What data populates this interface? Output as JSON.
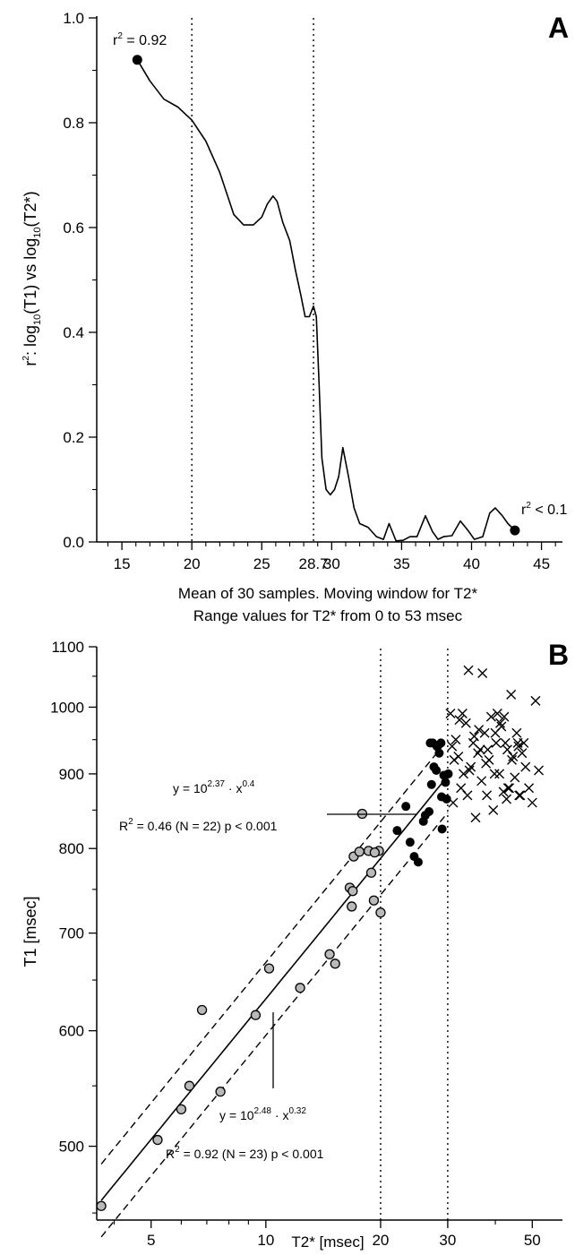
{
  "chart_data": [
    {
      "type": "line",
      "panel_label": "A",
      "ylabel_parts": {
        "r": "r",
        "r_sup": "2",
        "colon": ":  log",
        "sub1": "10",
        "mid": "(T1)  vs  log",
        "sub2": "10",
        "end": "(T2*)"
      },
      "xlabel_line1": "Mean of 30 samples. Moving window for T2*",
      "xlabel_line2": "Range values for T2* from 0 to 53 msec",
      "xlim": [
        13.2,
        46.5
      ],
      "ylim": [
        0,
        1.0
      ],
      "x_ticks": [
        15,
        20,
        25,
        30,
        35,
        40,
        45
      ],
      "x_tick_labels": [
        "15",
        "20",
        "25",
        "30",
        "35",
        "40",
        "45"
      ],
      "extra_x_tick_value": 28.7,
      "extra_x_tick_label": "28.7",
      "y_ticks": [
        0,
        0.2,
        0.4,
        0.6,
        0.8,
        1.0
      ],
      "y_tick_labels": [
        "0.0",
        "0.2",
        "0.4",
        "0.6",
        "0.8",
        "1.0"
      ],
      "vlines": [
        20,
        28.7
      ],
      "series": [
        {
          "x": [
            16.1,
            17.0,
            18.0,
            19.0,
            20.0,
            21.0,
            22.0,
            23.0,
            23.7,
            24.4,
            25.0,
            25.4,
            25.8,
            26.1,
            26.5,
            27.0,
            27.4,
            27.8,
            28.1,
            28.4,
            28.7,
            28.9,
            29.1,
            29.3,
            29.6,
            29.9,
            30.2,
            30.5,
            30.8,
            31.2,
            31.6,
            32.0,
            32.6,
            33.2,
            33.7,
            34.1,
            34.6,
            35.1,
            35.6,
            36.1,
            36.7,
            37.2,
            37.6,
            38.0,
            38.6,
            39.2,
            39.8,
            40.2,
            40.8,
            41.3,
            41.7,
            42.2,
            42.6,
            43.1
          ],
          "y": [
            0.92,
            0.88,
            0.845,
            0.83,
            0.805,
            0.765,
            0.705,
            0.625,
            0.605,
            0.605,
            0.62,
            0.645,
            0.66,
            0.65,
            0.61,
            0.575,
            0.52,
            0.47,
            0.43,
            0.43,
            0.45,
            0.43,
            0.3,
            0.16,
            0.1,
            0.09,
            0.1,
            0.125,
            0.18,
            0.125,
            0.065,
            0.035,
            0.028,
            0.01,
            0.005,
            0.035,
            0.002,
            0.003,
            0.01,
            0.01,
            0.05,
            0.02,
            0.005,
            0.01,
            0.012,
            0.04,
            0.02,
            0.005,
            0.01,
            0.055,
            0.065,
            0.05,
            0.035,
            0.022
          ]
        }
      ],
      "endpoints": [
        {
          "x": 16.1,
          "y": 0.92,
          "label_r": "r",
          "label_sup": "2",
          "label_rest": " = 0.92"
        },
        {
          "x": 43.1,
          "y": 0.022,
          "label_r": "r",
          "label_sup": "2",
          "label_rest": " < 0.1"
        }
      ]
    },
    {
      "type": "scatter",
      "panel_label": "B",
      "xlabel": "T2*  [msec]",
      "ylabel": "T1  [msec]",
      "x_scale": "log",
      "y_scale": "log",
      "xlim": [
        3.6,
        60
      ],
      "ylim": [
        445,
        1100
      ],
      "x_ticks": [
        5,
        10,
        20,
        30,
        50
      ],
      "x_tick_labels": [
        "5",
        "10",
        "20",
        "30",
        "50"
      ],
      "y_ticks": [
        500,
        600,
        700,
        800,
        900,
        1000,
        1100
      ],
      "y_tick_labels": [
        "500",
        "600",
        "700",
        "800",
        "900",
        "1000",
        "1100"
      ],
      "vlines": [
        20,
        30
      ],
      "series": [
        {
          "marker": "gray-circle",
          "x": [
            3.7,
            5.2,
            6.0,
            6.3,
            6.8,
            7.6,
            9.4,
            10.2,
            12.3,
            14.7,
            15.2,
            16.6,
            16.8,
            17.0,
            17.9,
            18.6,
            18.9,
            19.2,
            19.8,
            20.0,
            19.3,
            16.9,
            17.6
          ],
          "y": [
            455,
            505,
            530,
            550,
            620,
            545,
            615,
            662,
            642,
            677,
            667,
            752,
            730,
            790,
            845,
            797,
            770,
            737,
            797,
            723,
            795,
            748,
            796
          ]
        },
        {
          "marker": "black-circle",
          "x": [
            22.1,
            23.3,
            23.9,
            24.5,
            25.1,
            25.9,
            26.2,
            26.8,
            27.2,
            27.6,
            28.1,
            28.5,
            28.8,
            28.9,
            29.3,
            29.6,
            30.1,
            27.0,
            28.0,
            29.0,
            29.8,
            27.4
          ],
          "y": [
            823,
            855,
            808,
            790,
            783,
            835,
            843,
            848,
            885,
            910,
            940,
            930,
            945,
            868,
            898,
            888,
            900,
            945,
            905,
            825,
            865,
            945
          ]
        },
        {
          "marker": "x",
          "x": [
            31,
            32,
            33,
            34,
            35,
            36,
            37,
            38,
            39,
            40,
            41,
            42,
            43,
            44,
            45,
            46,
            47,
            48,
            52,
            30.5,
            31.5,
            32.5,
            33.5,
            34.5,
            35.5,
            36.5,
            37.5,
            38.5,
            39.5,
            40.5,
            41.5,
            42.5,
            43.5,
            44.5,
            45.5,
            46.5,
            47.5,
            49,
            50,
            51,
            30.8,
            32.2,
            33.8,
            35.2,
            36.8,
            38.2,
            39.8,
            41.2,
            42.8,
            44.2,
            45.8,
            31.2,
            34.2,
            36.2,
            40.2,
            43.2,
            32.8,
            37.8,
            42.2,
            46.2
          ],
          "y": [
            860,
            925,
            900,
            1060,
            945,
            930,
            1055,
            870,
            985,
            960,
            900,
            875,
            935,
            1020,
            895,
            940,
            930,
            910,
            905,
            990,
            950,
            880,
            975,
            910,
            840,
            935,
            960,
            920,
            850,
            990,
            970,
            945,
            880,
            925,
            960,
            870,
            945,
            880,
            860,
            1010,
            940,
            980,
            870,
            955,
            890,
            935,
            900,
            975,
            865,
            920,
            945,
            920,
            905,
            965,
            945,
            880,
            990,
            915,
            985,
            870
          ]
        }
      ],
      "fits": [
        {
          "type": "solid",
          "coef_exp": 2.48,
          "power": 0.32,
          "x_range": [
            3.7,
            30
          ],
          "eq_y": "y = 10",
          "eq_exp": "2.48",
          "eq_mid": " · x",
          "eq_pow": "0.32",
          "stats_R": "R",
          "stats_sup": "2",
          "stats_rest": " = 0.92  (N = 23)  p < 0.001"
        },
        {
          "type": "dashed-band",
          "offsets": [
            0.025,
            -0.025
          ],
          "x_range": [
            3.7,
            30
          ]
        },
        {
          "type": "annotation",
          "eq_y": "y = 10",
          "eq_exp": "2.37",
          "eq_mid": " · x",
          "eq_pow": "0.4",
          "stats_R": "R",
          "stats_sup": "2",
          "stats_rest": " = 0.46  (N = 22)  p < 0.001"
        }
      ]
    }
  ]
}
